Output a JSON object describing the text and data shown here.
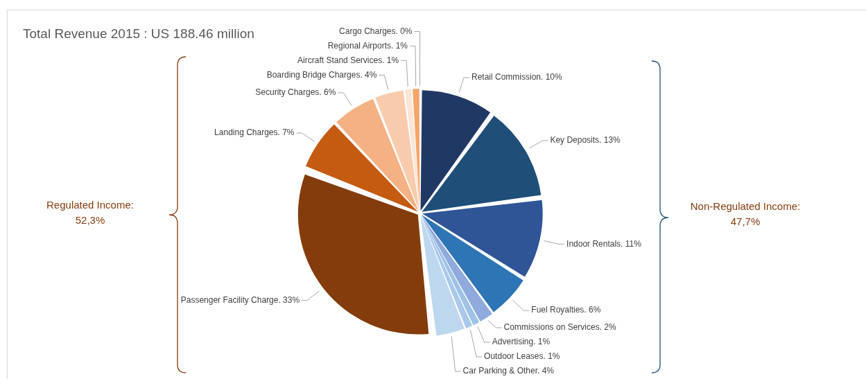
{
  "chart_data": {
    "type": "pie",
    "title": "Total Revenue 2015 : US 188.46 million",
    "categories": [
      "Retail Commission.",
      "Key Deposits.",
      "Indoor Rentals.",
      "Fuel Royalties.",
      "Commissions on Services.",
      "Advertising.",
      "Outdoor Leases.",
      "Car Parking & Other.",
      "Passenger Facility Charge.",
      "Landing Charges.",
      "Security Charges.",
      "Boarding Bridge Charges.",
      "Aircraft Stand Services.",
      "Regional Airports.",
      "Cargo Charges."
    ],
    "values": [
      10,
      13,
      11,
      6,
      2,
      1,
      1,
      4,
      33,
      7,
      6,
      4,
      1,
      1,
      0
    ],
    "value_labels": [
      "10%",
      "13%",
      "11%",
      "6%",
      "2%",
      "1%",
      "1%",
      "4%",
      "33%",
      "7%",
      "6%",
      "4%",
      "1%",
      "1%",
      "0%"
    ],
    "colors": [
      "#203864",
      "#1f4e79",
      "#2f5597",
      "#2e75b6",
      "#8faadc",
      "#9dc3e6",
      "#a9c8ea",
      "#bdd7ee",
      "#843c0c",
      "#c55a11",
      "#f4b183",
      "#f8cbad",
      "#fbe5d6",
      "#f4a56a",
      "#ed7d31"
    ],
    "annotations": [
      "Regulated Income:\n52,3%",
      "Non-Regulated Income:\n47,7%"
    ],
    "legend": false
  }
}
